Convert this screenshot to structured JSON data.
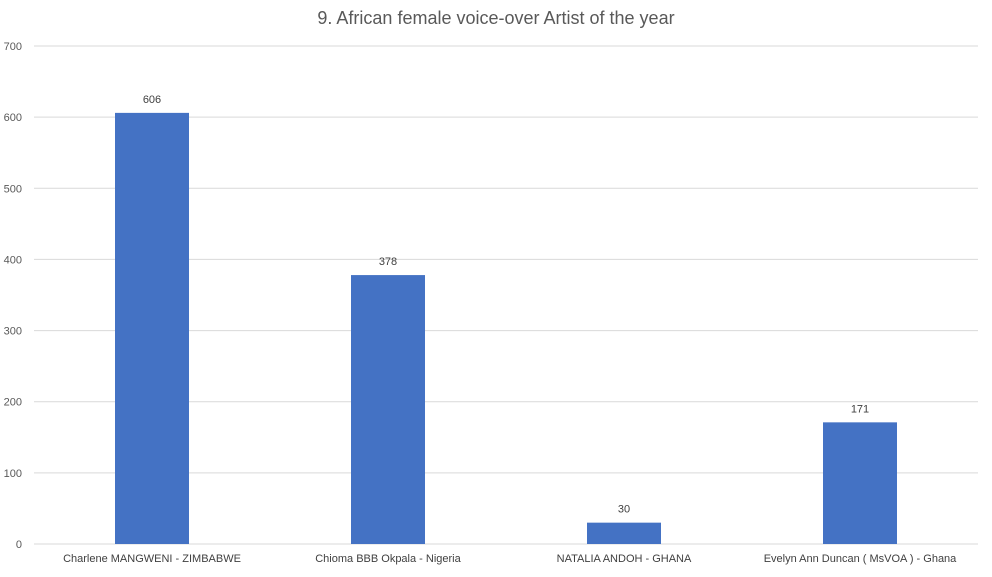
{
  "chart_data": {
    "type": "bar",
    "title": "9. African female voice-over Artist of the year",
    "categories": [
      "Charlene MANGWENI - ZIMBABWE",
      "Chioma BBB Okpala - Nigeria",
      "NATALIA ANDOH - GHANA",
      "Evelyn Ann Duncan ( MsVOA ) - Ghana"
    ],
    "values": [
      606,
      378,
      30,
      171
    ],
    "data_labels": [
      "606",
      "378",
      "30",
      "171"
    ],
    "ylim": [
      0,
      700
    ],
    "yticks": [
      "0",
      "100",
      "200",
      "300",
      "400",
      "500",
      "600",
      "700"
    ],
    "grid": true,
    "legend": "none",
    "colors": {
      "bar": "#4472C4",
      "grid": "#D9D9D9",
      "text": "#595959"
    }
  }
}
